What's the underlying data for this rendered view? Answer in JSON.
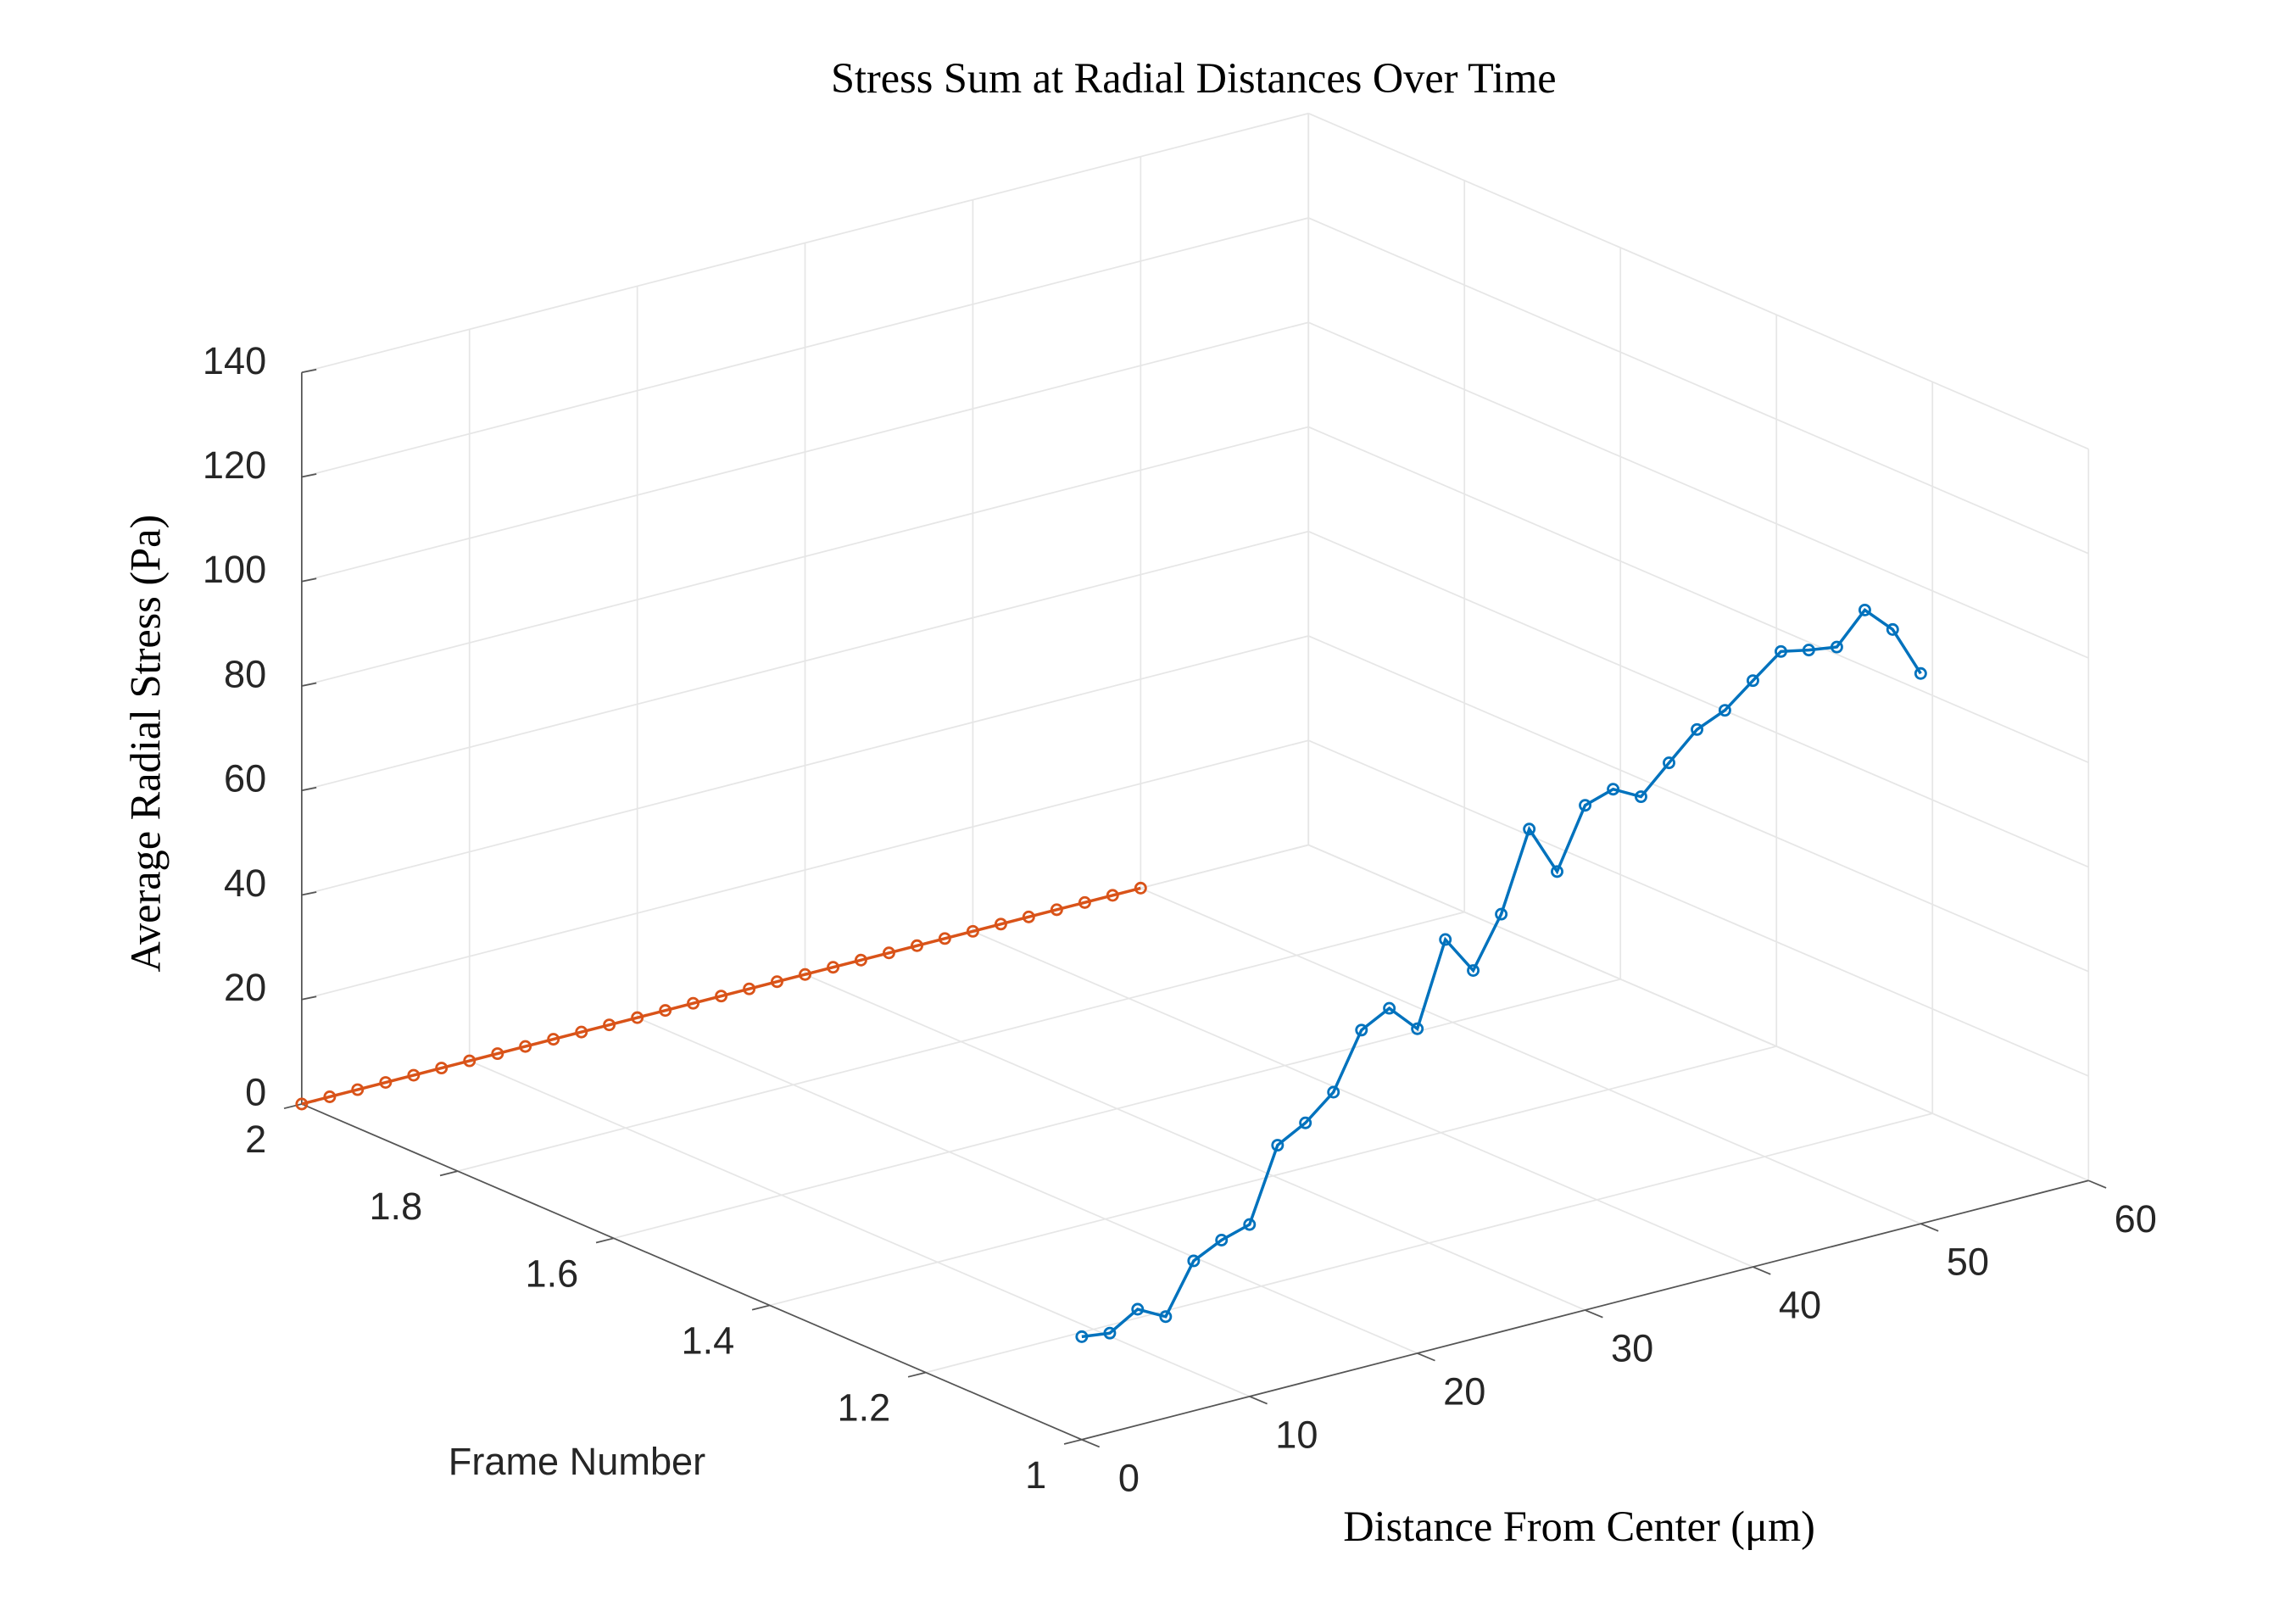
{
  "chart_data": {
    "type": "line3d",
    "title": "Stress Sum at Radial Distances Over Time",
    "xlabel": "Distance From Center (μm)",
    "ylabel": "Frame Number",
    "zlabel": "Average Radial Stress (Pa)",
    "x": [
      0,
      1.67,
      3.33,
      5,
      6.67,
      8.33,
      10,
      11.67,
      13.33,
      15,
      16.67,
      18.33,
      20,
      21.67,
      23.33,
      25,
      26.67,
      28.33,
      30,
      31.67,
      33.33,
      35,
      36.67,
      38.33,
      40,
      41.67,
      43.33,
      45,
      46.67,
      48.33,
      50
    ],
    "series": [
      {
        "frame": 1,
        "color": "#0072bd",
        "values": [
          19.7,
          19.0,
          22.2,
          19.4,
          28.7,
          31.3,
          32.9,
          46.7,
          49.6,
          54.1,
          64.6,
          67.4,
          62.1,
          77.8,
          70.5,
          79.9,
          94.8,
          85.3,
          96.6,
          98.3,
          95.5,
          100.6,
          105.6,
          107.9,
          112.2,
          116.4,
          115.3,
          114.5,
          120.2,
          115.1,
          105.3
        ]
      },
      {
        "frame": 2,
        "color": "#d95319",
        "values": [
          0,
          0,
          0,
          0,
          0,
          0,
          0,
          0,
          0,
          0,
          0,
          0,
          0,
          0,
          0,
          0,
          0,
          0,
          0,
          0,
          0,
          0,
          0,
          0,
          0,
          0,
          0,
          0,
          0,
          0,
          0
        ]
      }
    ],
    "xlim": [
      0,
      60
    ],
    "xticks": [
      0,
      10,
      20,
      30,
      40,
      50,
      60
    ],
    "ylim": [
      1,
      2
    ],
    "yticks": [
      1,
      1.2,
      1.4,
      1.6,
      1.8,
      2
    ],
    "zlim": [
      0,
      140
    ],
    "zticks": [
      0,
      20,
      40,
      60,
      80,
      100,
      120,
      140
    ],
    "grid": true,
    "marker": "o"
  }
}
